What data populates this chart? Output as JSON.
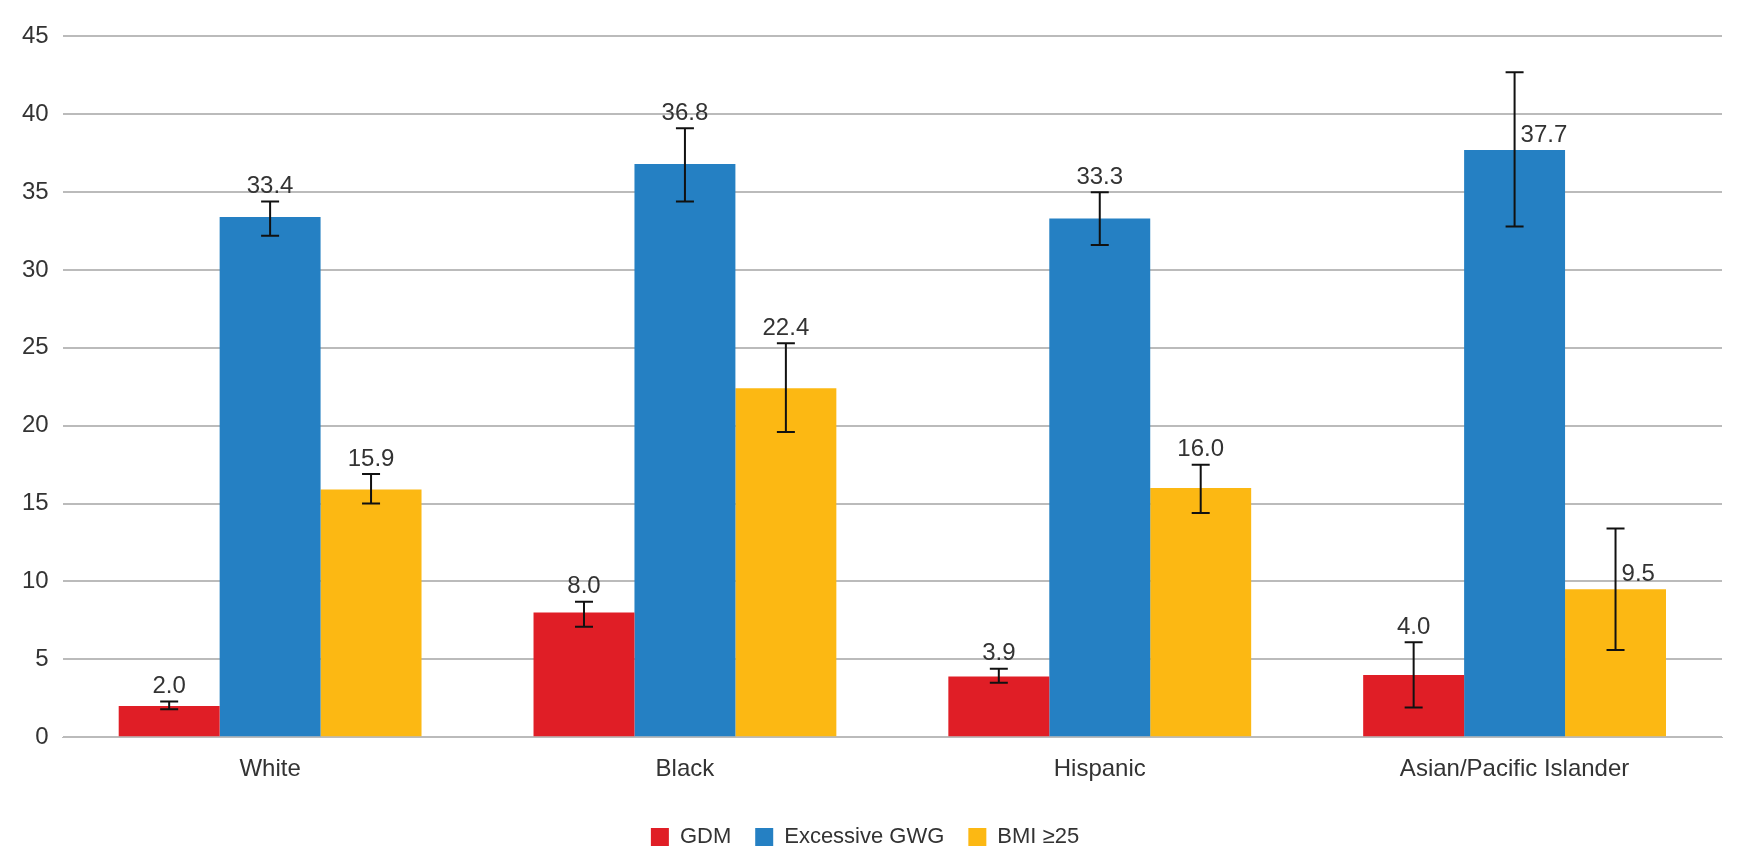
{
  "chart_data": {
    "type": "bar",
    "categories": [
      "White",
      "Black",
      "Hispanic",
      "Asian/Pacific Islander"
    ],
    "series": [
      {
        "name": "GDM",
        "color": "#e01e26",
        "values": [
          2.0,
          8.0,
          3.9,
          4.0
        ],
        "value_labels": [
          "2.0",
          "8.0",
          "3.9",
          "4.0"
        ],
        "errors": [
          [
            1.8,
            2.3
          ],
          [
            7.1,
            8.7
          ],
          [
            3.5,
            4.4
          ],
          [
            1.9,
            6.1
          ]
        ]
      },
      {
        "name": "Excessive GWG",
        "color": "#2580c3",
        "values": [
          33.4,
          36.8,
          33.3,
          37.7
        ],
        "value_labels": [
          "33.4",
          "36.8",
          "33.3",
          "37.7"
        ],
        "errors": [
          [
            32.2,
            34.4
          ],
          [
            34.4,
            39.1
          ],
          [
            31.6,
            35.0
          ],
          [
            32.8,
            42.7
          ]
        ]
      },
      {
        "name": "BMI ≥25",
        "color": "#fcb813",
        "values": [
          15.9,
          22.4,
          16.0,
          9.5
        ],
        "value_labels": [
          "15.9",
          "22.4",
          "16.0",
          "9.5"
        ],
        "errors": [
          [
            15.0,
            16.9
          ],
          [
            19.6,
            25.3
          ],
          [
            14.4,
            17.5
          ],
          [
            5.6,
            13.4
          ]
        ]
      }
    ],
    "ylim": [
      0,
      45
    ],
    "yticks": [
      0,
      5,
      10,
      15,
      20,
      25,
      30,
      35,
      40,
      45
    ],
    "grid": "y",
    "legend": "bottom"
  }
}
